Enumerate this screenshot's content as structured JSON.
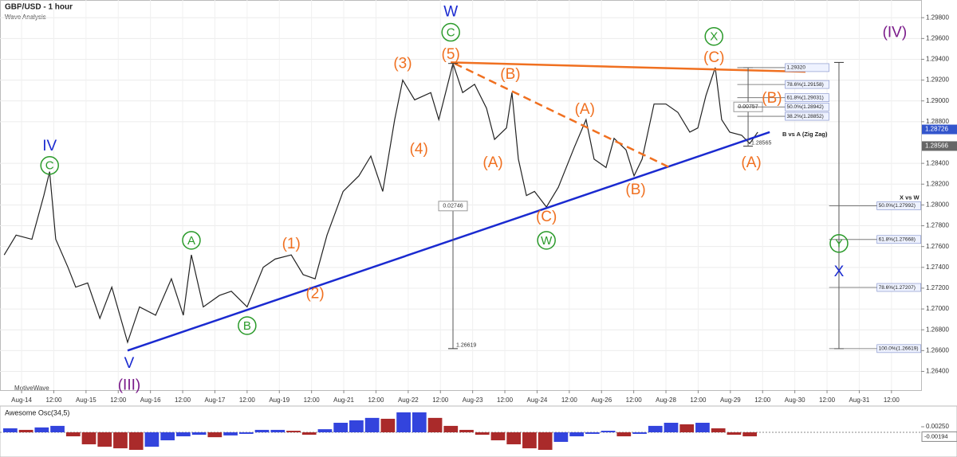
{
  "chart_data": {
    "type": "line",
    "title": "GBP/USD - 1 hour",
    "subtitle": "Wave Analysis",
    "watermark": "MotiveWave",
    "xlim": [
      -0.67,
      27.92
    ],
    "xticks": [
      {
        "value": 0,
        "label": "Aug-14"
      },
      {
        "value": 1,
        "label": "12:00"
      },
      {
        "value": 2,
        "label": "Aug-15"
      },
      {
        "value": 3,
        "label": "12:00"
      },
      {
        "value": 4,
        "label": "Aug-16"
      },
      {
        "value": 5,
        "label": "12:00"
      },
      {
        "value": 6,
        "label": "Aug-17"
      },
      {
        "value": 7,
        "label": "12:00"
      },
      {
        "value": 8,
        "label": "Aug-19"
      },
      {
        "value": 9,
        "label": "12:00"
      },
      {
        "value": 10,
        "label": "Aug-21"
      },
      {
        "value": 11,
        "label": "12:00"
      },
      {
        "value": 12,
        "label": "Aug-22"
      },
      {
        "value": 13,
        "label": "12:00"
      },
      {
        "value": 14,
        "label": "Aug-23"
      },
      {
        "value": 15,
        "label": "12:00"
      },
      {
        "value": 16,
        "label": "Aug-24"
      },
      {
        "value": 17,
        "label": "12:00"
      },
      {
        "value": 18,
        "label": "Aug-26"
      },
      {
        "value": 19,
        "label": "12:00"
      },
      {
        "value": 20,
        "label": "Aug-28"
      },
      {
        "value": 21,
        "label": "12:00"
      },
      {
        "value": 22,
        "label": "Aug-29"
      },
      {
        "value": 23,
        "label": "12:00"
      },
      {
        "value": 24,
        "label": "Aug-30"
      },
      {
        "value": 25,
        "label": "12:00"
      },
      {
        "value": 26,
        "label": "Aug-31"
      },
      {
        "value": 27,
        "label": "12:00"
      }
    ],
    "ylim": [
      1.2622,
      1.2997
    ],
    "yticks": [
      {
        "value": 1.298,
        "label": "1.29800"
      },
      {
        "value": 1.296,
        "label": "1.29600"
      },
      {
        "value": 1.294,
        "label": "1.29400"
      },
      {
        "value": 1.292,
        "label": "1.29200"
      },
      {
        "value": 1.29,
        "label": "1.29000"
      },
      {
        "value": 1.288,
        "label": "1.28800"
      },
      {
        "value": 1.284,
        "label": "1.28400"
      },
      {
        "value": 1.282,
        "label": "1.28200"
      },
      {
        "value": 1.28,
        "label": "1.28000"
      },
      {
        "value": 1.278,
        "label": "1.27800"
      },
      {
        "value": 1.276,
        "label": "1.27600"
      },
      {
        "value": 1.274,
        "label": "1.27400"
      },
      {
        "value": 1.272,
        "label": "1.27200"
      },
      {
        "value": 1.27,
        "label": "1.27000"
      },
      {
        "value": 1.268,
        "label": "1.26800"
      },
      {
        "value": 1.266,
        "label": "1.26600"
      },
      {
        "value": 1.264,
        "label": "1.26400"
      }
    ],
    "series": [
      {
        "name": "GBP/USD",
        "color": "#222222",
        "x": [
          -0.54,
          -0.17,
          0.32,
          0.69,
          0.87,
          1.06,
          1.44,
          1.68,
          2.05,
          2.43,
          2.8,
          3.29,
          3.66,
          4.16,
          4.65,
          5.02,
          5.27,
          5.64,
          6.14,
          6.51,
          7.0,
          7.5,
          7.87,
          8.37,
          8.74,
          9.11,
          9.48,
          9.98,
          10.47,
          10.84,
          11.21,
          11.58,
          11.83,
          12.2,
          12.7,
          12.95,
          13.39,
          13.69,
          14.06,
          14.43,
          14.68,
          15.05,
          15.22,
          15.42,
          15.67,
          15.92,
          16.29,
          16.66,
          17.15,
          17.52,
          17.77,
          18.14,
          18.39,
          18.76,
          19.01,
          19.26,
          19.63,
          20.0,
          20.37,
          20.74,
          20.99,
          21.24,
          21.53,
          21.73,
          21.98,
          22.35,
          22.6,
          22.85
        ],
        "values": [
          1.2752,
          1.2771,
          1.2767,
          1.2809,
          1.2832,
          1.2767,
          1.274,
          1.2721,
          1.2725,
          1.2691,
          1.2721,
          1.2668,
          1.2702,
          1.2694,
          1.2729,
          1.2694,
          1.2752,
          1.2702,
          1.2713,
          1.2717,
          1.2702,
          1.274,
          1.2748,
          1.2752,
          1.2733,
          1.2729,
          1.2771,
          1.2813,
          1.2828,
          1.2847,
          1.2813,
          1.2882,
          1.292,
          1.2901,
          1.2908,
          1.2882,
          1.2936,
          1.2908,
          1.2916,
          1.2893,
          1.2863,
          1.2874,
          1.2908,
          1.2844,
          1.2809,
          1.2813,
          1.2798,
          1.2817,
          1.2855,
          1.2882,
          1.2844,
          1.2836,
          1.2864,
          1.2853,
          1.2828,
          1.2844,
          1.2897,
          1.2897,
          1.2889,
          1.287,
          1.2874,
          1.2905,
          1.2932,
          1.2882,
          1.287,
          1.2867,
          1.2859,
          1.287
        ]
      }
    ],
    "trendlines": [
      {
        "color": "#1a2ad0",
        "dashed": false,
        "x": [
          3.29,
          23.22
        ],
        "y": [
          1.266,
          1.287
        ]
      },
      {
        "color": "#f07020",
        "dashed": false,
        "x": [
          13.32,
          24.33
        ],
        "y": [
          1.2937,
          1.2928
        ]
      },
      {
        "color": "#f07020",
        "dashed": true,
        "x": [
          13.44,
          20.12
        ],
        "y": [
          1.2936,
          1.2836
        ]
      }
    ],
    "annotations": [
      {
        "text": "W",
        "color": "#1a2ad0",
        "x": 13.32,
        "y": 1.2986
      },
      {
        "text": "C",
        "color": "#2a9a2a",
        "circled": true,
        "x": 13.32,
        "y": 1.2966
      },
      {
        "text": "(5)",
        "color": "#f07020",
        "x": 13.32,
        "y": 1.2945
      },
      {
        "text": "(3)",
        "color": "#f07020",
        "x": 11.83,
        "y": 1.2936
      },
      {
        "text": "(B)",
        "color": "#f07020",
        "x": 15.17,
        "y": 1.2926
      },
      {
        "text": "(4)",
        "color": "#f07020",
        "x": 12.33,
        "y": 1.2854
      },
      {
        "text": "(A)",
        "color": "#f07020",
        "x": 14.63,
        "y": 1.2841
      },
      {
        "text": "(A)",
        "color": "#f07020",
        "x": 17.48,
        "y": 1.2892
      },
      {
        "text": "(C)",
        "color": "#f07020",
        "x": 16.29,
        "y": 1.2789
      },
      {
        "text": "W",
        "color": "#2a9a2a",
        "circled": true,
        "x": 16.29,
        "y": 1.2766
      },
      {
        "text": "(B)",
        "color": "#f07020",
        "x": 19.06,
        "y": 1.2815
      },
      {
        "text": "X",
        "color": "#2a9a2a",
        "circled": true,
        "x": 21.49,
        "y": 1.2962
      },
      {
        "text": "(C)",
        "color": "#f07020",
        "x": 21.49,
        "y": 1.2942
      },
      {
        "text": "(B)",
        "color": "#f07020",
        "x": 23.29,
        "y": 1.2903
      },
      {
        "text": "(A)",
        "color": "#f07020",
        "x": 22.65,
        "y": 1.2841
      },
      {
        "text": "IV",
        "color": "#1a2ad0",
        "x": 0.87,
        "y": 1.2857
      },
      {
        "text": "C",
        "color": "#2a9a2a",
        "circled": true,
        "x": 0.87,
        "y": 1.2838
      },
      {
        "text": "V",
        "color": "#1a2ad0",
        "x": 3.34,
        "y": 1.2648
      },
      {
        "text": "(III)",
        "color": "#7a1a8a",
        "x": 3.34,
        "y": 1.2627
      },
      {
        "text": "A",
        "color": "#2a9a2a",
        "circled": true,
        "x": 5.27,
        "y": 1.2766
      },
      {
        "text": "(1)",
        "color": "#f07020",
        "x": 8.37,
        "y": 1.2763
      },
      {
        "text": "(2)",
        "color": "#f07020",
        "x": 9.11,
        "y": 1.2715
      },
      {
        "text": "B",
        "color": "#2a9a2a",
        "circled": true,
        "x": 7.0,
        "y": 1.2684
      },
      {
        "text": "(IV)",
        "color": "#7a1a8a",
        "x": 27.1,
        "y": 1.2966
      },
      {
        "text": "Y",
        "color": "#2a9a2a",
        "circled": true,
        "x": 25.37,
        "y": 1.2763
      },
      {
        "text": "X",
        "color": "#1a2ad0",
        "x": 25.37,
        "y": 1.2736
      }
    ],
    "measures": [
      {
        "x": 13.39,
        "from": 1.2936,
        "to": 1.26619,
        "label": "0.02746",
        "end_label": "1.26619"
      },
      {
        "x": 22.55,
        "from": 1.2932,
        "to": 1.28565,
        "label": "0.00757",
        "end_label": "1.28565"
      },
      {
        "x": 25.37,
        "from": 1.2937,
        "to": 1.26619
      }
    ],
    "fib_groups": [
      {
        "title": "B vs A (Zig Zag)",
        "x": 23.7,
        "levels": [
          {
            "value": 1.2932,
            "label": "1.29320"
          },
          {
            "value": 1.29158,
            "label": "78.6%(1.29158)"
          },
          {
            "value": 1.29031,
            "label": "61.8%(1.29031)"
          },
          {
            "value": 1.28942,
            "label": "50.0%(1.28942)"
          },
          {
            "value": 1.28852,
            "label": "38.2%(1.28852)"
          }
        ]
      },
      {
        "title": "X vs W",
        "x": 26.55,
        "levels": [
          {
            "value": 1.27992,
            "label": "50.0%(1.27992)"
          },
          {
            "value": 1.27668,
            "label": "61.8%(1.27668)"
          },
          {
            "value": 1.27207,
            "label": "78.6%(1.27207)"
          },
          {
            "value": 1.26619,
            "label": "100.0%(1.26619)"
          }
        ]
      }
    ],
    "price_markers": [
      {
        "value": 1.28726,
        "label": "1.28726",
        "color": "#3355cc"
      },
      {
        "value": 1.28566,
        "label": "1.28566",
        "color": "#666666"
      }
    ],
    "oscillator": {
      "name": "Awesome Osc(34,5)",
      "up_color": "#3344dd",
      "down_color": "#aa2a2a",
      "ylim": [
        -0.0104,
        0.0104
      ],
      "yticks": [
        {
          "value": 0.0025,
          "label": "0.00250"
        }
      ],
      "marker": {
        "value": -0.00194,
        "label": "-0.00194"
      },
      "values": [
        0.0018,
        0.0011,
        0.0022,
        0.0029,
        -0.0018,
        -0.0054,
        -0.0065,
        -0.0072,
        -0.0079,
        -0.0065,
        -0.0036,
        -0.0018,
        -0.0011,
        -0.0022,
        -0.0014,
        -0.0007,
        0.0011,
        0.0011,
        0.0007,
        -0.0011,
        0.0014,
        0.0043,
        0.0054,
        0.0065,
        0.0061,
        0.009,
        0.009,
        0.0065,
        0.0029,
        0.0011,
        -0.0011,
        -0.0036,
        -0.0054,
        -0.0072,
        -0.0079,
        -0.0043,
        -0.0018,
        -0.0007,
        0.0007,
        -0.0018,
        -0.0007,
        0.0029,
        0.0043,
        0.0036,
        0.0043,
        0.0018,
        -0.0011,
        -0.0018
      ]
    }
  }
}
